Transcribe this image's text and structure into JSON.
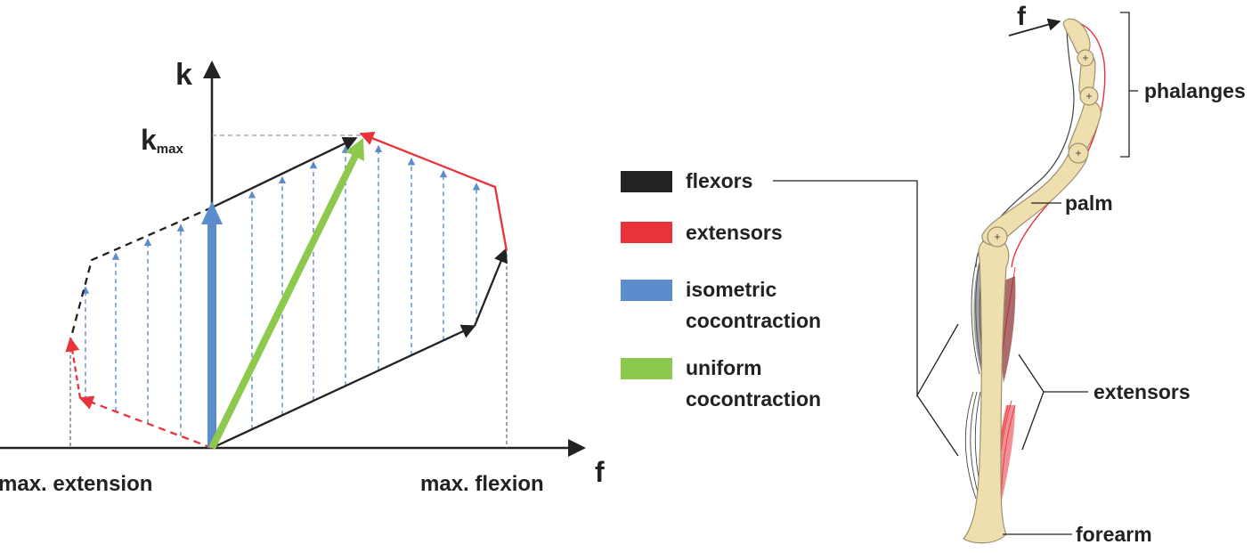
{
  "graph": {
    "y_axis_label": "k",
    "kmax_base": "k",
    "kmax_sub": "max",
    "x_axis_label": "f",
    "x_left_label": "max. extension",
    "x_right_label": "max. flexion"
  },
  "legend": [
    {
      "label": "flexors",
      "color": "#222222"
    },
    {
      "label": "extensors",
      "color": "#e8333a"
    },
    {
      "label": "isometric\ncocontraction",
      "color": "#5b8ccb"
    },
    {
      "label": "uniform\ncocontraction",
      "color": "#8cc94c"
    }
  ],
  "anatomy": {
    "force_label": "f",
    "phalanges": "phalanges",
    "palm": "palm",
    "extensors": "extensors",
    "forearm": "forearm"
  },
  "colors": {
    "flexor": "#222222",
    "extensor": "#e8333a",
    "isometric": "#5b8ccb",
    "uniform": "#8cc94c",
    "bone": "#efdfae",
    "bone_stroke": "#9c9070"
  }
}
